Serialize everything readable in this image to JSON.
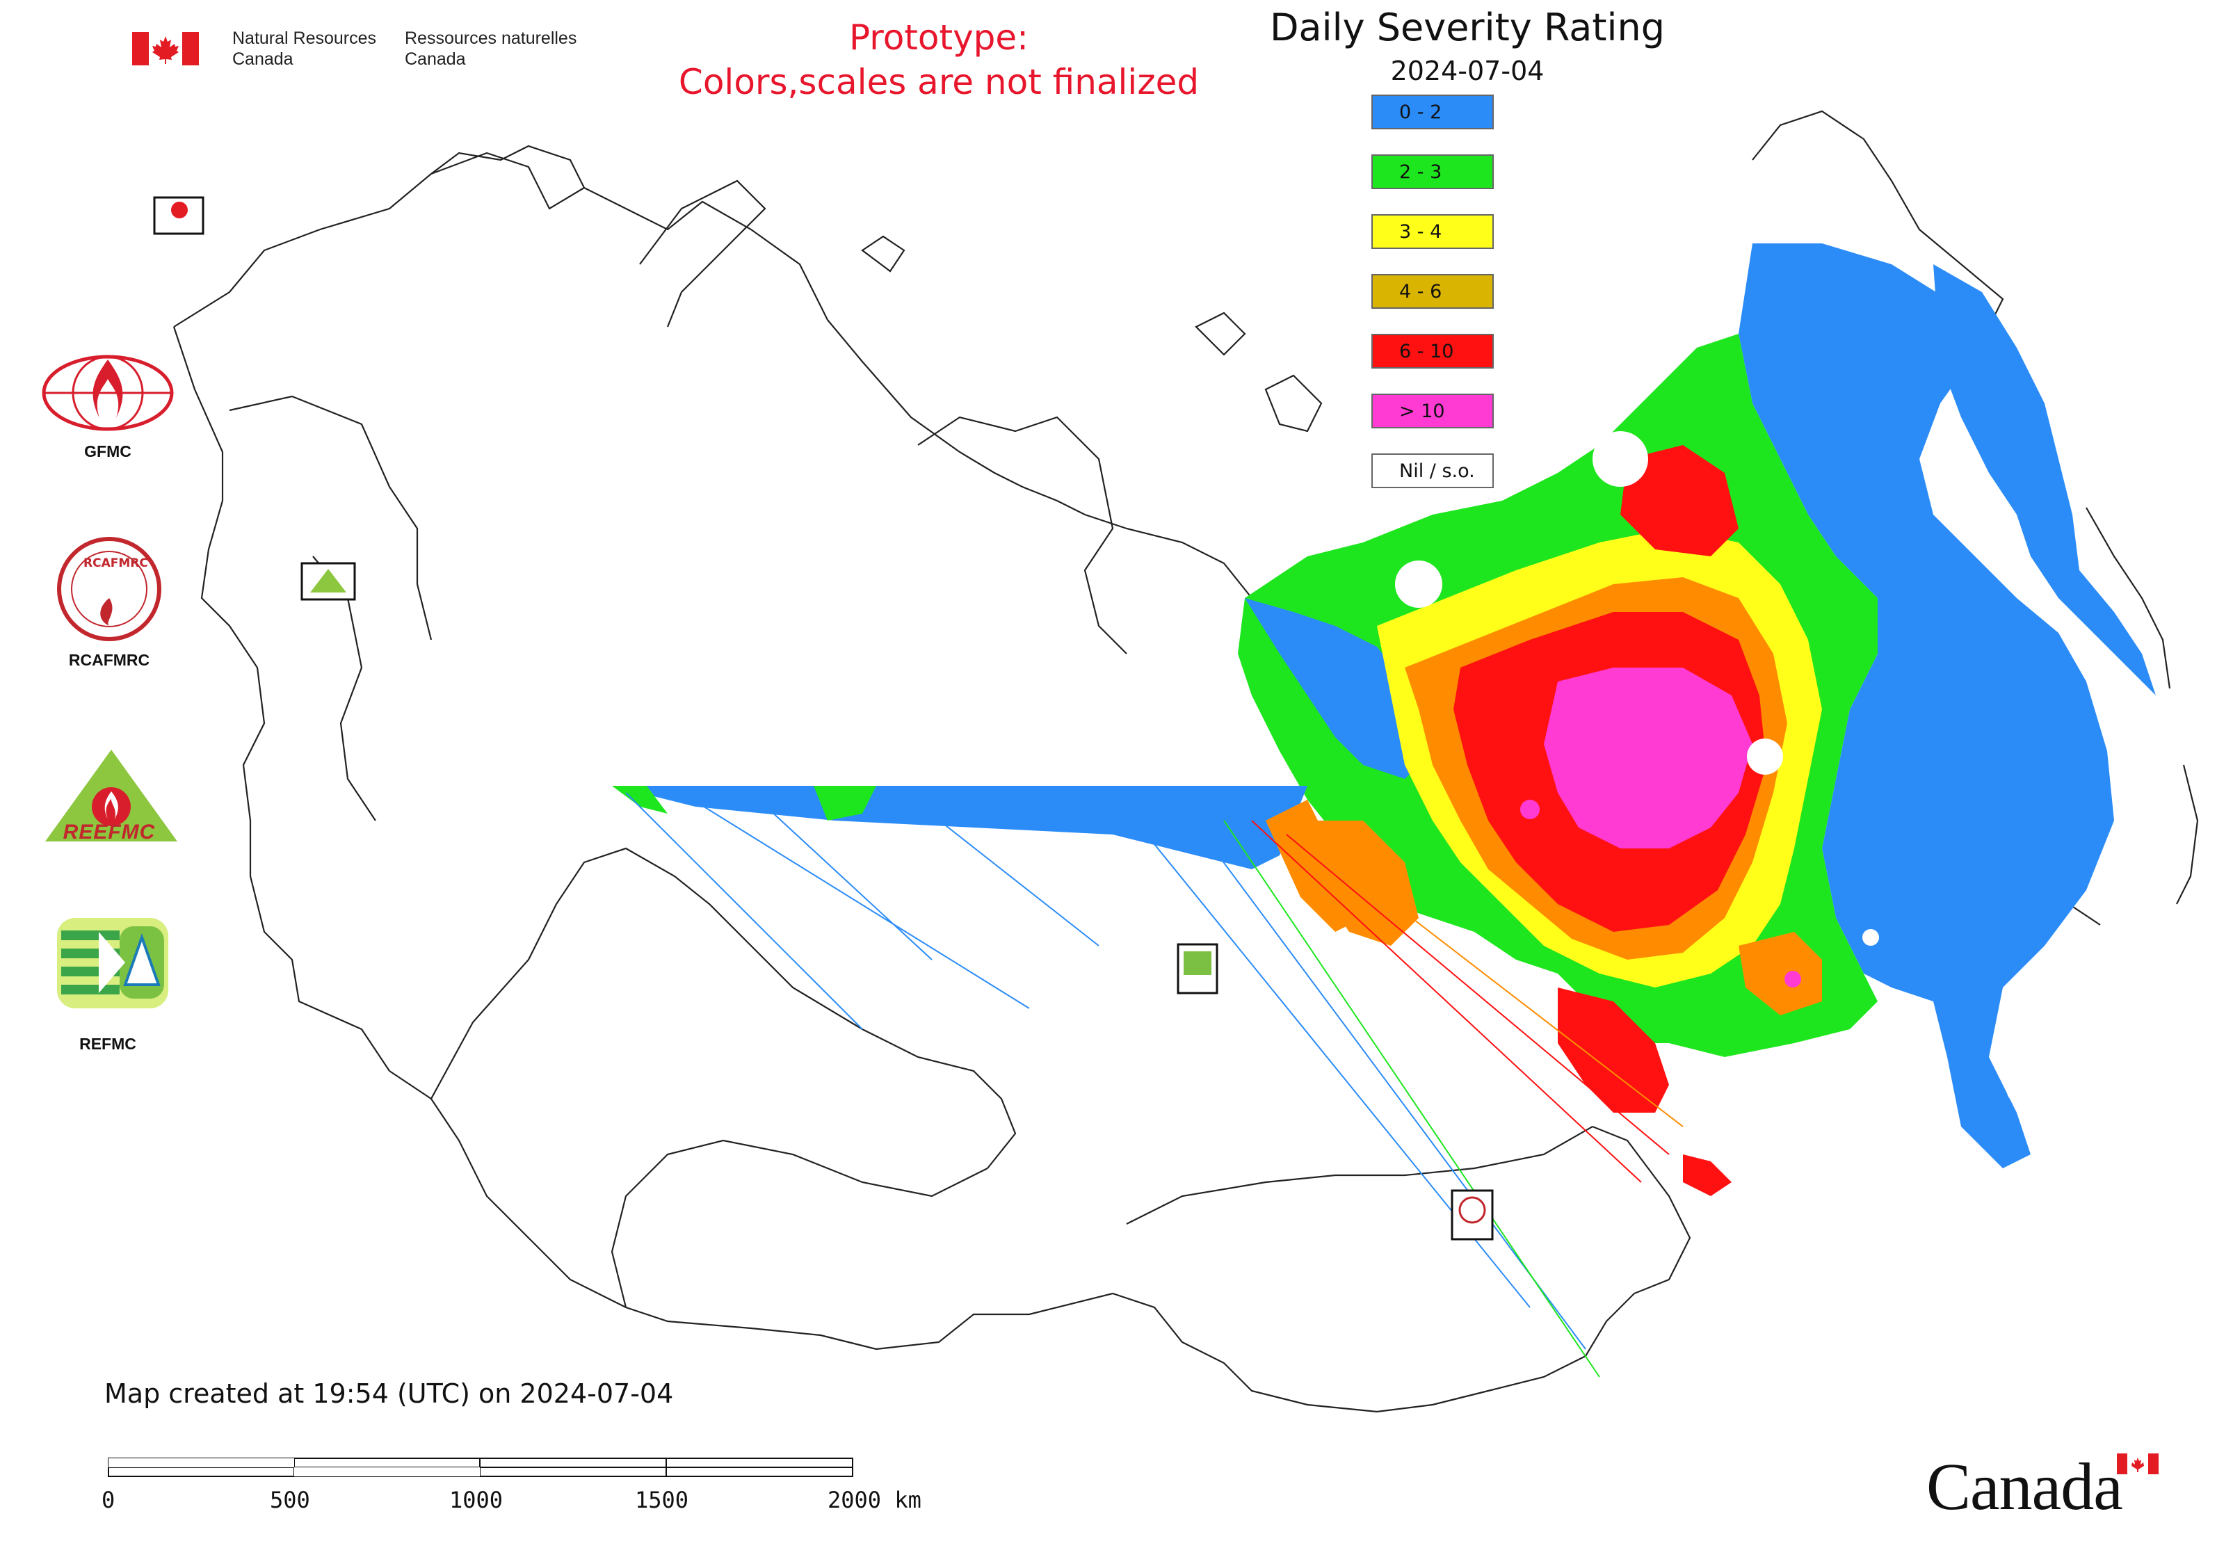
{
  "header": {
    "dept_en_line1": "Natural Resources",
    "dept_en_line2": "Canada",
    "dept_fr_line1": "Ressources naturelles",
    "dept_fr_line2": "Canada",
    "prototype_line1": "Prototype:",
    "prototype_line2": "Colors,scales are not finalized"
  },
  "map": {
    "title": "Daily Severity Rating",
    "date": "2024-07-04",
    "created": "Map created at 19:54 (UTC) on 2024-07-04"
  },
  "legend": [
    {
      "label": "0 - 2",
      "color": "#2b8cf7"
    },
    {
      "label": "2 - 3",
      "color": "#1ee61e"
    },
    {
      "label": "3 - 4",
      "color": "#ffff1a"
    },
    {
      "label": "4 - 6",
      "color": "#d9b400"
    },
    {
      "label": "6 - 10",
      "color": "#ff1111"
    },
    {
      "label": "> 10",
      "color": "#ff3bd4"
    },
    {
      "label": "Nil / s.o.",
      "color": "#ffffff"
    }
  ],
  "logos": {
    "gfmc": "GFMC",
    "rcafmrc": "RCAFMRC",
    "reefmc_text": "REEFMC",
    "refmc": "REFMC",
    "rcafmrc_seal_text": "RCAFMRC",
    "small_gfmc": "GFMC",
    "small_refmc": "REFMC",
    "small_rcafmrc": "RCAFMRC",
    "small_reefmc": "REEFMC"
  },
  "scale": {
    "ticks": [
      "0",
      "500",
      "1000",
      "1500",
      "2000 km"
    ]
  },
  "footer": {
    "wordmark": "Canada"
  },
  "colors": {
    "blue": "#2b8cf7",
    "green": "#1ee61e",
    "yellow": "#ffff1a",
    "orange": "#ff8c00",
    "gold": "#d9b400",
    "red": "#ff1111",
    "magenta": "#ff3bd4",
    "prototype_red": "#e8162c",
    "flag_red": "#e31b23"
  }
}
